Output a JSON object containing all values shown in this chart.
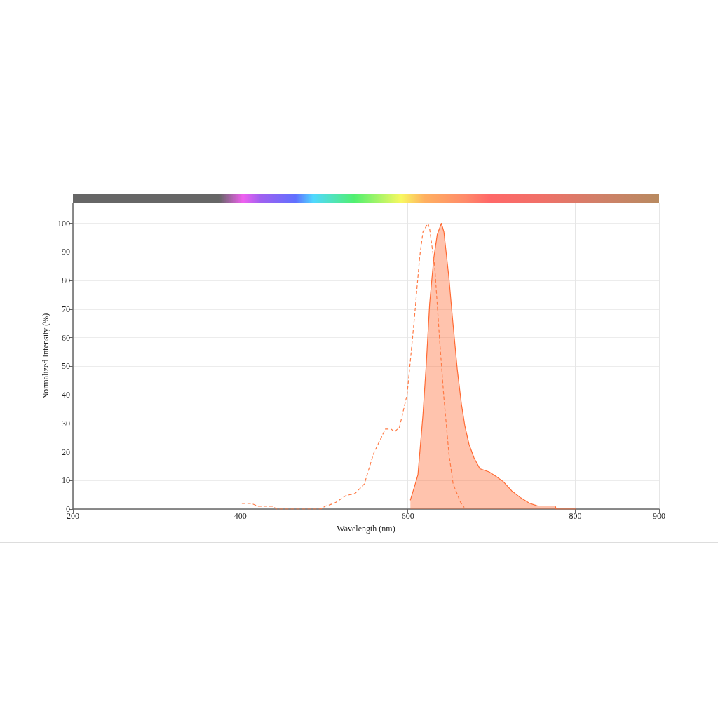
{
  "chart_data": {
    "type": "area",
    "xlabel": "Wavelength (nm)",
    "ylabel": "Normalized Intensity (%)",
    "xlim": [
      200,
      900
    ],
    "xticks": [
      200,
      400,
      600,
      800,
      900
    ],
    "ylim": [
      0,
      107
    ],
    "yticks": [
      0,
      10,
      20,
      30,
      40,
      50,
      60,
      70,
      80,
      90,
      100
    ],
    "grid": true,
    "marker": "none",
    "series": [
      {
        "type": "line",
        "line_style": "dashed",
        "color": "#ff7a45",
        "x": [
          402,
          413,
          421,
          439,
          443,
          496,
          501,
          512,
          526,
          537,
          548,
          559,
          573,
          580,
          584,
          590,
          599,
          603,
          608,
          614,
          618,
          624,
          626,
          632,
          638,
          643,
          649,
          654,
          663,
          667
        ],
        "values": [
          2,
          2,
          1,
          1,
          0,
          0,
          1,
          2,
          4.7,
          5.5,
          8.8,
          19.4,
          28,
          28,
          27,
          28.7,
          40,
          52,
          67.6,
          88,
          97,
          100,
          98,
          85,
          58.7,
          39,
          19.4,
          8.8,
          2.3,
          0.7
        ]
      },
      {
        "line_style": "solid",
        "color": "#ff6a33",
        "x": [
          603,
          608,
          612,
          618,
          622,
          626,
          631,
          635,
          640,
          643,
          649,
          653,
          659,
          664,
          668,
          673,
          679,
          686,
          697,
          706,
          714,
          724,
          735,
          745,
          755,
          776,
          777,
          800
        ],
        "values": [
          3.2,
          8,
          12,
          33,
          51,
          72,
          88,
          96,
          100,
          97,
          81,
          67.6,
          48.8,
          36.6,
          29.2,
          22.7,
          17.9,
          14.1,
          13,
          11.3,
          9.6,
          6.4,
          3.9,
          2.1,
          1.1,
          1.1,
          0,
          0
        ]
      }
    ]
  }
}
